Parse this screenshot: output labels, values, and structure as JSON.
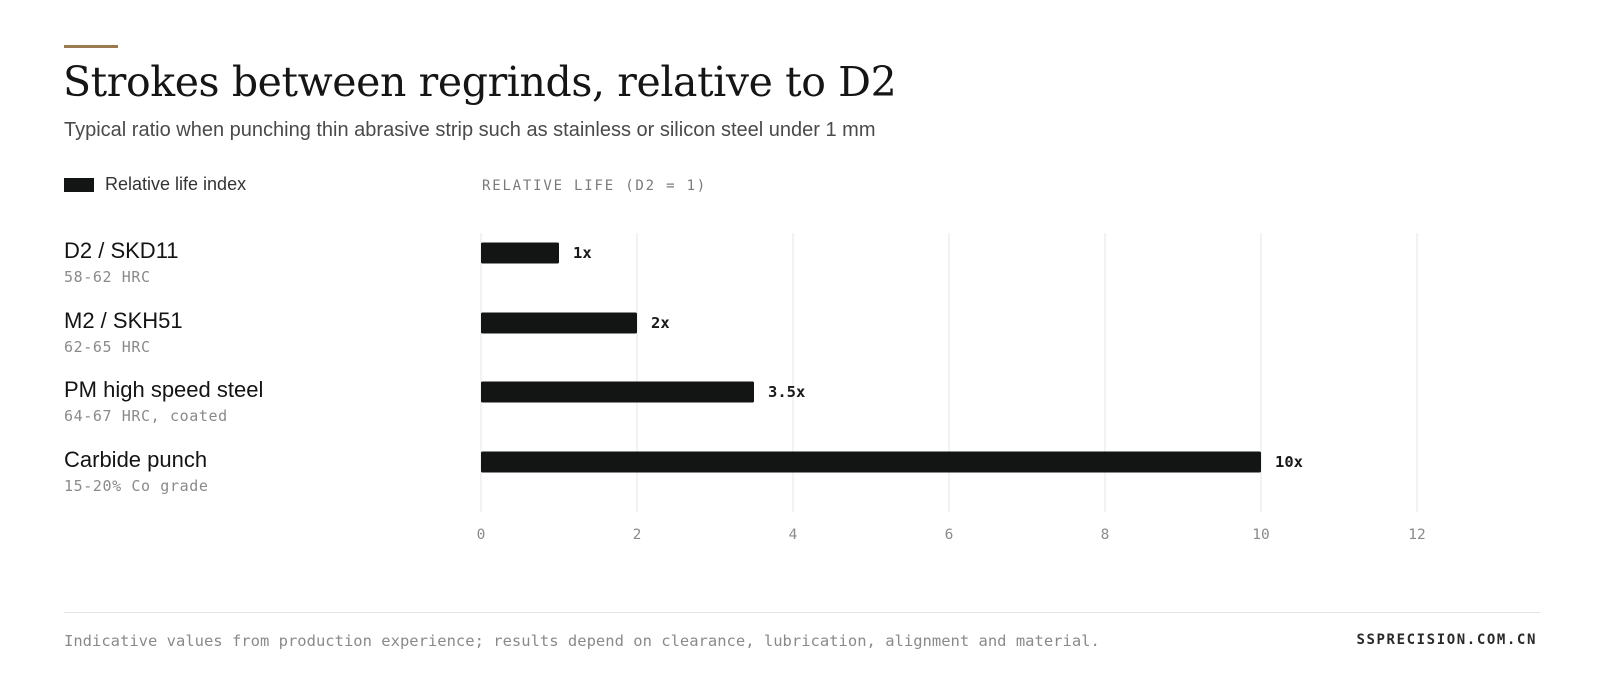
{
  "chart_data": {
    "type": "bar",
    "orientation": "horizontal",
    "title": "Strokes between regrinds, relative to D2",
    "subtitle": "Typical ratio when punching thin abrasive strip such as stainless or silicon steel under 1 mm",
    "xlabel": "RELATIVE LIFE (D2 = 1)",
    "legend": [
      "Relative life index"
    ],
    "legend_placement": "top-left",
    "xlim": [
      0,
      12
    ],
    "ticks": [
      "0",
      "2",
      "4",
      "6",
      "8",
      "10",
      "12"
    ],
    "tick_values": [
      0,
      2,
      4,
      6,
      8,
      10,
      12
    ],
    "grid": true,
    "bar_color": "#131515",
    "categories": [
      {
        "name": "D2 / SKD11",
        "sub": "58-62 HRC",
        "value": 1,
        "label": "1x"
      },
      {
        "name": "M2 / SKH51",
        "sub": "62-65 HRC",
        "value": 2,
        "label": "2x"
      },
      {
        "name": "PM high speed steel",
        "sub": "64-67 HRC, coated",
        "value": 3.5,
        "label": "3.5x"
      },
      {
        "name": "Carbide punch",
        "sub": "15-20% Co grade",
        "value": 10,
        "label": "10x"
      }
    ]
  },
  "footer": {
    "note": "Indicative values from production experience; results depend on clearance, lubrication, alignment and material.",
    "site": "SSPRECISION.COM.CN"
  },
  "colors": {
    "accent": "#9a7b4f",
    "bar": "#131515",
    "grid": "#e6e6e6"
  }
}
